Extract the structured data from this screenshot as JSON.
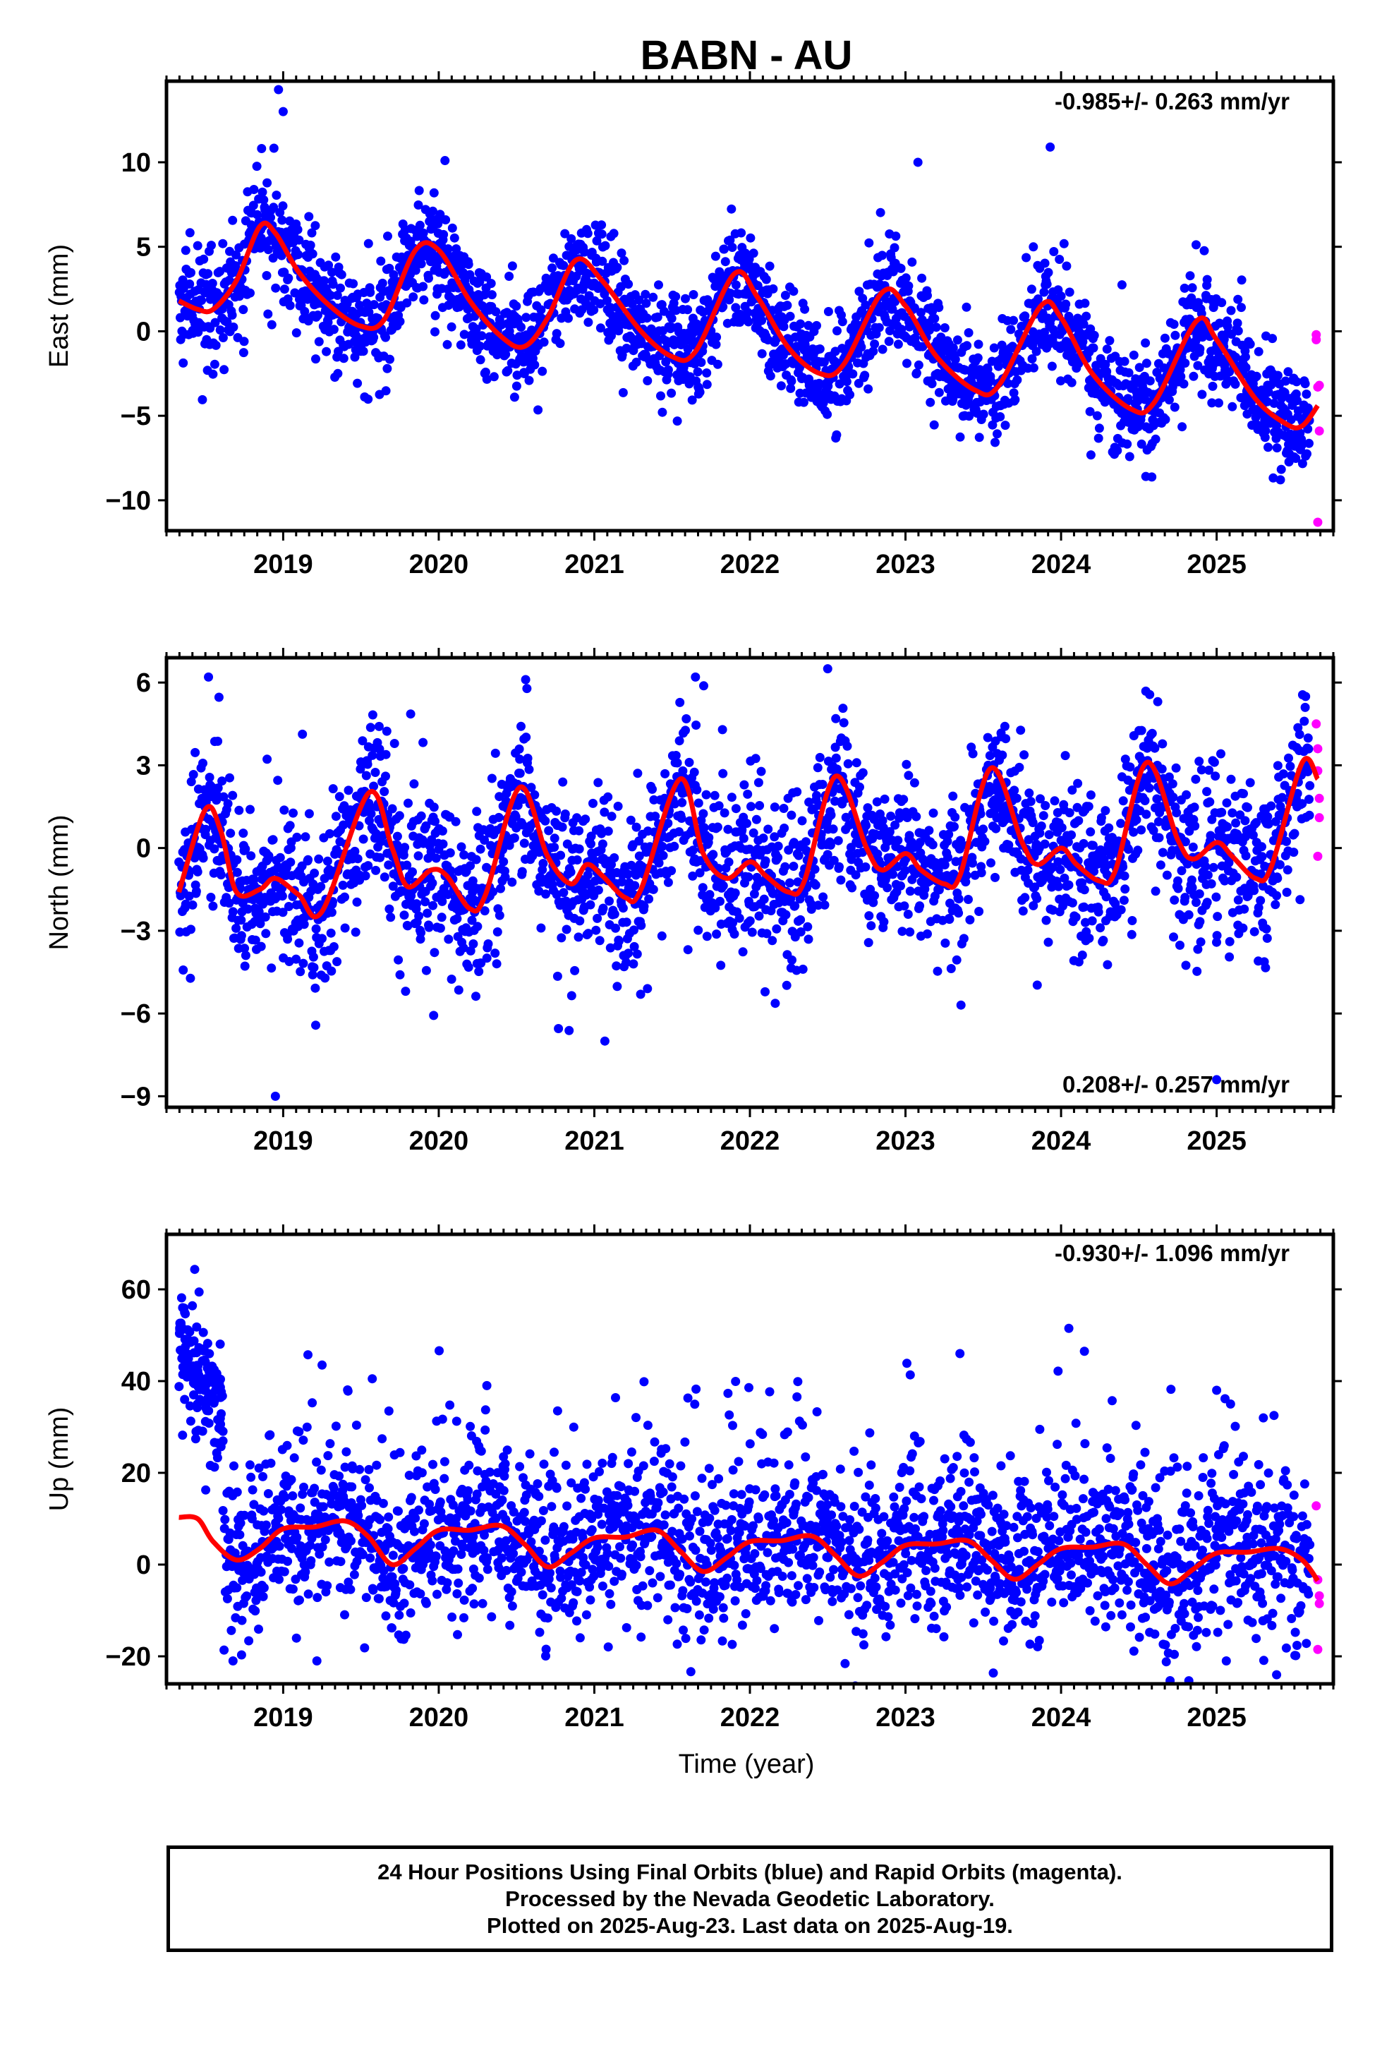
{
  "title": "BABN - AU",
  "xlabel": "Time (year)",
  "colors": {
    "final": "#0000ff",
    "rapid": "#ff00ff",
    "model": "#ff0000"
  },
  "chart_data": [
    {
      "type": "scatter",
      "component": "East",
      "ylabel": "East (mm)",
      "rate": "-0.985+/- 0.263 mm/yr",
      "xlim": [
        2018.25,
        2025.75
      ],
      "ylim": [
        -11.8,
        14.8
      ],
      "yticks": [
        -10,
        -5,
        0,
        5,
        10
      ],
      "xticks": [
        2019,
        2020,
        2021,
        2022,
        2023,
        2024,
        2025
      ],
      "series": [
        {
          "role": "final",
          "x_start": 2018.33,
          "x_end": 2025.6,
          "trend_mm_per_yr": -0.985,
          "offset_at_2018": 3.2,
          "annual_amp": 3.0,
          "annual_peak_frac": 0.88,
          "semiannual_amp": 0.9,
          "semiannual_phase": 0.5,
          "scatter_sd": 1.6,
          "outliers": [
            [
              2018.97,
              14.3
            ],
            [
              2019.0,
              13.0
            ],
            [
              2023.93,
              10.9
            ],
            [
              2023.08,
              10.0
            ],
            [
              2020.04,
              10.1
            ]
          ]
        },
        {
          "role": "rapid",
          "points": [
            [
              2025.64,
              -0.5
            ],
            [
              2025.64,
              -0.2
            ],
            [
              2025.65,
              -3.3
            ],
            [
              2025.66,
              -3.2
            ],
            [
              2025.66,
              -5.9
            ],
            [
              2025.65,
              -11.3
            ]
          ]
        },
        {
          "role": "model",
          "values": [
            [
              2018.33,
              1.8
            ],
            [
              2018.45,
              1.3
            ],
            [
              2018.55,
              1.3
            ],
            [
              2018.7,
              3.0
            ],
            [
              2018.85,
              6.2
            ],
            [
              2018.95,
              5.8
            ],
            [
              2019.1,
              3.5
            ],
            [
              2019.3,
              1.5
            ],
            [
              2019.5,
              0.3
            ],
            [
              2019.65,
              0.7
            ],
            [
              2019.85,
              4.8
            ],
            [
              2020.0,
              4.8
            ],
            [
              2020.2,
              1.8
            ],
            [
              2020.4,
              -0.3
            ],
            [
              2020.55,
              -0.9
            ],
            [
              2020.7,
              0.8
            ],
            [
              2020.88,
              4.2
            ],
            [
              2021.05,
              3.0
            ],
            [
              2021.3,
              0.0
            ],
            [
              2021.5,
              -1.5
            ],
            [
              2021.65,
              -1.2
            ],
            [
              2021.9,
              3.4
            ],
            [
              2022.05,
              2.0
            ],
            [
              2022.25,
              -1.0
            ],
            [
              2022.45,
              -2.5
            ],
            [
              2022.6,
              -2.0
            ],
            [
              2022.85,
              2.3
            ],
            [
              2023.0,
              1.5
            ],
            [
              2023.2,
              -1.5
            ],
            [
              2023.45,
              -3.5
            ],
            [
              2023.6,
              -3.2
            ],
            [
              2023.87,
              1.5
            ],
            [
              2024.0,
              0.8
            ],
            [
              2024.2,
              -2.5
            ],
            [
              2024.45,
              -4.6
            ],
            [
              2024.6,
              -4.2
            ],
            [
              2024.87,
              0.6
            ],
            [
              2025.0,
              -0.5
            ],
            [
              2025.25,
              -4.0
            ],
            [
              2025.45,
              -5.5
            ],
            [
              2025.55,
              -5.6
            ],
            [
              2025.65,
              -4.4
            ]
          ]
        }
      ]
    },
    {
      "type": "scatter",
      "component": "North",
      "ylabel": "North (mm)",
      "rate": "0.208+/- 0.257 mm/yr",
      "xlim": [
        2018.25,
        2025.75
      ],
      "ylim": [
        -9.4,
        6.9
      ],
      "yticks": [
        -9,
        -6,
        -3,
        0,
        3,
        6
      ],
      "xticks": [
        2019,
        2020,
        2021,
        2022,
        2023,
        2024,
        2025
      ],
      "series": [
        {
          "role": "final",
          "x_start": 2018.33,
          "x_end": 2025.6,
          "trend_mm_per_yr": 0.208,
          "offset_at_2018": -0.7,
          "annual_amp": 1.4,
          "annual_peak_frac": 0.55,
          "semiannual_amp": 0.9,
          "semiannual_phase": 0.05,
          "scatter_sd": 1.5,
          "outliers": [
            [
              2018.95,
              -9.0
            ],
            [
              2022.5,
              6.5
            ],
            [
              2025.0,
              -8.4
            ],
            [
              2018.52,
              6.2
            ],
            [
              2021.65,
              6.2
            ]
          ]
        },
        {
          "role": "rapid",
          "points": [
            [
              2025.64,
              4.5
            ],
            [
              2025.65,
              3.6
            ],
            [
              2025.65,
              2.8
            ],
            [
              2025.66,
              1.8
            ],
            [
              2025.66,
              1.1
            ],
            [
              2025.65,
              -0.3
            ]
          ]
        },
        {
          "role": "model",
          "values": [
            [
              2018.33,
              -1.6
            ],
            [
              2018.5,
              1.4
            ],
            [
              2018.6,
              0.6
            ],
            [
              2018.7,
              -1.6
            ],
            [
              2018.85,
              -1.5
            ],
            [
              2018.95,
              -1.1
            ],
            [
              2019.1,
              -1.7
            ],
            [
              2019.25,
              -2.3
            ],
            [
              2019.55,
              2.0
            ],
            [
              2019.7,
              0.0
            ],
            [
              2019.8,
              -1.4
            ],
            [
              2019.95,
              -0.8
            ],
            [
              2020.05,
              -1.0
            ],
            [
              2020.2,
              -2.2
            ],
            [
              2020.3,
              -1.7
            ],
            [
              2020.52,
              2.2
            ],
            [
              2020.7,
              -0.3
            ],
            [
              2020.85,
              -1.3
            ],
            [
              2020.95,
              -0.6
            ],
            [
              2021.05,
              -1.0
            ],
            [
              2021.2,
              -1.8
            ],
            [
              2021.3,
              -1.5
            ],
            [
              2021.55,
              2.5
            ],
            [
              2021.7,
              -0.2
            ],
            [
              2021.85,
              -1.1
            ],
            [
              2022.0,
              -0.5
            ],
            [
              2022.1,
              -1.0
            ],
            [
              2022.25,
              -1.6
            ],
            [
              2022.35,
              -1.2
            ],
            [
              2022.55,
              2.6
            ],
            [
              2022.75,
              0.0
            ],
            [
              2022.85,
              -0.8
            ],
            [
              2023.0,
              -0.2
            ],
            [
              2023.1,
              -0.8
            ],
            [
              2023.25,
              -1.3
            ],
            [
              2023.35,
              -1.0
            ],
            [
              2023.55,
              2.9
            ],
            [
              2023.75,
              0.2
            ],
            [
              2023.85,
              -0.6
            ],
            [
              2024.0,
              0.0
            ],
            [
              2024.1,
              -0.6
            ],
            [
              2024.25,
              -1.2
            ],
            [
              2024.35,
              -0.8
            ],
            [
              2024.55,
              3.1
            ],
            [
              2024.75,
              0.3
            ],
            [
              2024.85,
              -0.4
            ],
            [
              2025.0,
              0.2
            ],
            [
              2025.1,
              -0.3
            ],
            [
              2025.25,
              -1.1
            ],
            [
              2025.35,
              -0.7
            ],
            [
              2025.55,
              3.1
            ],
            [
              2025.65,
              2.5
            ]
          ]
        }
      ]
    },
    {
      "type": "scatter",
      "component": "Up",
      "ylabel": "Up (mm)",
      "rate": "-0.930+/- 1.096 mm/yr",
      "xlim": [
        2018.25,
        2025.75
      ],
      "ylim": [
        -26,
        72
      ],
      "yticks": [
        -20,
        0,
        20,
        40,
        60
      ],
      "xticks": [
        2019,
        2020,
        2021,
        2022,
        2023,
        2024,
        2025
      ],
      "series": [
        {
          "role": "final",
          "x_start": 2018.62,
          "x_end": 2025.6,
          "trend_mm_per_yr": -0.93,
          "offset_at_2018": 8.0,
          "annual_amp": 2.5,
          "annual_peak_frac": 0.2,
          "semiannual_amp": 1.0,
          "semiannual_phase": 0.3,
          "scatter_sd": 8.5,
          "early_cluster": {
            "x_start": 2018.33,
            "x_end": 2018.62,
            "y_start": 50,
            "y_end": 30,
            "sd": 7
          },
          "outliers": [
            [
              2019.25,
              43.5
            ],
            [
              2023.35,
              46.0
            ],
            [
              2024.05,
              51.5
            ],
            [
              2024.15,
              46.5
            ],
            [
              2025.0,
              38.0
            ]
          ]
        },
        {
          "role": "rapid",
          "points": [
            [
              2025.64,
              12.8
            ],
            [
              2025.65,
              -3.3
            ],
            [
              2025.66,
              -6.8
            ],
            [
              2025.66,
              -8.5
            ],
            [
              2025.65,
              -18.5
            ]
          ]
        },
        {
          "role": "model",
          "values": [
            [
              2018.33,
              10.3
            ],
            [
              2018.45,
              10.0
            ],
            [
              2018.55,
              5.0
            ],
            [
              2018.7,
              1.0
            ],
            [
              2018.85,
              3.5
            ],
            [
              2019.0,
              7.8
            ],
            [
              2019.2,
              8.2
            ],
            [
              2019.4,
              9.5
            ],
            [
              2019.55,
              6.0
            ],
            [
              2019.7,
              0.0
            ],
            [
              2019.85,
              3.5
            ],
            [
              2020.0,
              7.5
            ],
            [
              2020.2,
              7.5
            ],
            [
              2020.4,
              8.5
            ],
            [
              2020.55,
              4.5
            ],
            [
              2020.7,
              -0.5
            ],
            [
              2020.85,
              2.5
            ],
            [
              2021.0,
              5.8
            ],
            [
              2021.2,
              6.0
            ],
            [
              2021.4,
              7.5
            ],
            [
              2021.55,
              3.0
            ],
            [
              2021.7,
              -1.5
            ],
            [
              2021.85,
              1.5
            ],
            [
              2022.0,
              5.0
            ],
            [
              2022.2,
              5.2
            ],
            [
              2022.4,
              6.2
            ],
            [
              2022.55,
              2.0
            ],
            [
              2022.7,
              -2.5
            ],
            [
              2022.85,
              0.5
            ],
            [
              2023.0,
              4.2
            ],
            [
              2023.2,
              4.5
            ],
            [
              2023.4,
              5.2
            ],
            [
              2023.55,
              1.0
            ],
            [
              2023.7,
              -3.2
            ],
            [
              2023.85,
              0.0
            ],
            [
              2024.0,
              3.5
            ],
            [
              2024.2,
              3.8
            ],
            [
              2024.4,
              4.5
            ],
            [
              2024.55,
              0.0
            ],
            [
              2024.7,
              -4.2
            ],
            [
              2024.85,
              -1.0
            ],
            [
              2025.0,
              2.5
            ],
            [
              2025.2,
              2.7
            ],
            [
              2025.4,
              3.5
            ],
            [
              2025.55,
              1.0
            ],
            [
              2025.65,
              -3.5
            ]
          ]
        }
      ]
    }
  ],
  "footer": [
    "24 Hour Positions Using Final Orbits (blue) and Rapid Orbits (magenta).",
    "Processed by the Nevada Geodetic Laboratory.",
    "Plotted on 2025-Aug-23. Last data on 2025-Aug-19."
  ]
}
